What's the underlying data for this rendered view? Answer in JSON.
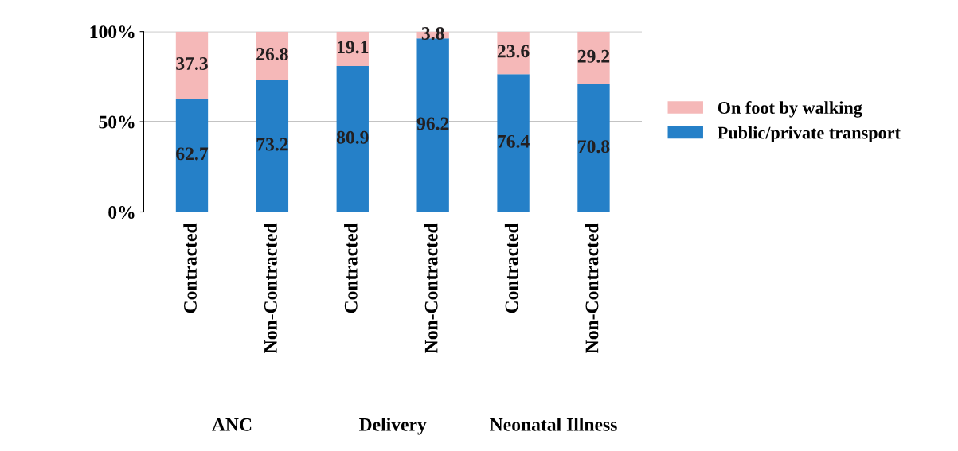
{
  "chart_data": {
    "type": "bar",
    "stacked": true,
    "categories": [
      "Contracted",
      "Non-Contracted",
      "Contracted",
      "Non-Contracted",
      "Contracted",
      "Non-Contracted"
    ],
    "annotations": [
      "ANC",
      "Delivery",
      "Neonatal Illness"
    ],
    "series": [
      {
        "name": "Public/private transport",
        "color": "#2580c8",
        "values": [
          62.7,
          73.2,
          80.9,
          96.2,
          76.4,
          70.8
        ]
      },
      {
        "name": "On foot by walking",
        "color": "#f5b8b8",
        "values": [
          37.3,
          26.8,
          19.1,
          3.8,
          23.6,
          29.2
        ]
      }
    ],
    "ylim": [
      0,
      100
    ],
    "yticks": [
      {
        "value": 0,
        "label": "0%"
      },
      {
        "value": 50,
        "label": "50%"
      },
      {
        "value": 100,
        "label": "100%"
      }
    ],
    "data_labels": true,
    "grid": "y",
    "legend": "right"
  }
}
